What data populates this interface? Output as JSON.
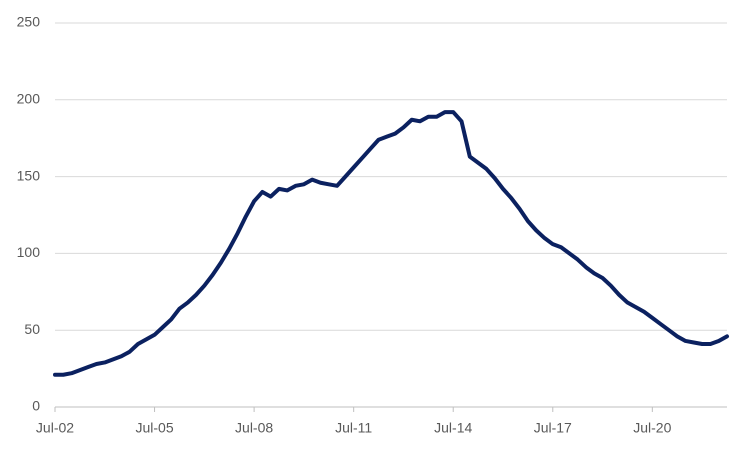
{
  "chart_data": {
    "type": "line",
    "categories": [
      "Jul-02",
      null,
      null,
      null,
      null,
      null,
      null,
      null,
      null,
      null,
      null,
      null,
      "Jul-05",
      null,
      null,
      null,
      null,
      null,
      null,
      null,
      null,
      null,
      null,
      null,
      "Jul-08",
      null,
      null,
      null,
      null,
      null,
      null,
      null,
      null,
      null,
      null,
      null,
      "Jul-11",
      null,
      null,
      null,
      null,
      null,
      null,
      null,
      null,
      null,
      null,
      null,
      "Jul-14",
      null,
      null,
      null,
      null,
      null,
      null,
      null,
      null,
      null,
      null,
      null,
      "Jul-17",
      null,
      null,
      null,
      null,
      null,
      null,
      null,
      null,
      null,
      null,
      null,
      "Jul-20",
      null,
      null,
      null,
      null,
      null,
      null,
      null,
      null,
      null
    ],
    "series": [
      {
        "color": "#0b2160",
        "values": [
          21,
          21,
          22,
          24,
          26,
          28,
          29,
          31,
          33,
          36,
          41,
          44,
          47,
          52,
          57,
          64,
          68,
          73,
          79,
          86,
          94,
          103,
          113,
          124,
          134,
          140,
          137,
          142,
          141,
          144,
          145,
          148,
          146,
          145,
          144,
          150,
          156,
          162,
          168,
          174,
          176,
          178,
          182,
          187,
          186,
          189,
          189,
          192,
          192,
          186,
          163,
          159,
          155,
          149,
          142,
          136,
          129,
          121,
          115,
          110,
          106,
          104,
          100,
          96,
          91,
          87,
          84,
          79,
          73,
          68,
          65,
          62,
          58,
          54,
          50,
          46,
          43,
          42,
          41,
          41,
          43,
          46
        ]
      }
    ],
    "ylim": [
      0,
      250
    ],
    "yticks": [
      0,
      50,
      100,
      150,
      200,
      250
    ],
    "grid": true
  }
}
